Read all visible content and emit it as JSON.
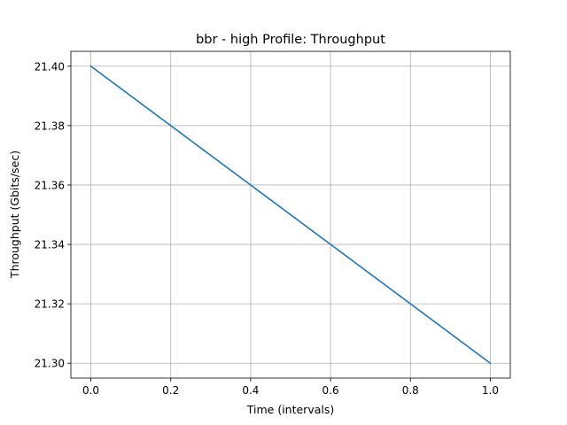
{
  "chart_data": {
    "type": "line",
    "title": "bbr - high Profile: Throughput",
    "xlabel": "Time (intervals)",
    "ylabel": "Throughput (Gbits/sec)",
    "xlim": [
      -0.05,
      1.05
    ],
    "ylim": [
      21.295,
      21.405
    ],
    "x_ticks": [
      0.0,
      0.2,
      0.4,
      0.6,
      0.8,
      1.0
    ],
    "x_tick_labels": [
      "0.0",
      "0.2",
      "0.4",
      "0.6",
      "0.8",
      "1.0"
    ],
    "y_ticks": [
      21.3,
      21.32,
      21.34,
      21.36,
      21.38,
      21.4
    ],
    "y_tick_labels": [
      "21.30",
      "21.32",
      "21.34",
      "21.36",
      "21.38",
      "21.40"
    ],
    "grid": true,
    "series": [
      {
        "color": "#1f77b4",
        "x": [
          0,
          1
        ],
        "y": [
          21.4,
          21.3
        ]
      }
    ]
  }
}
